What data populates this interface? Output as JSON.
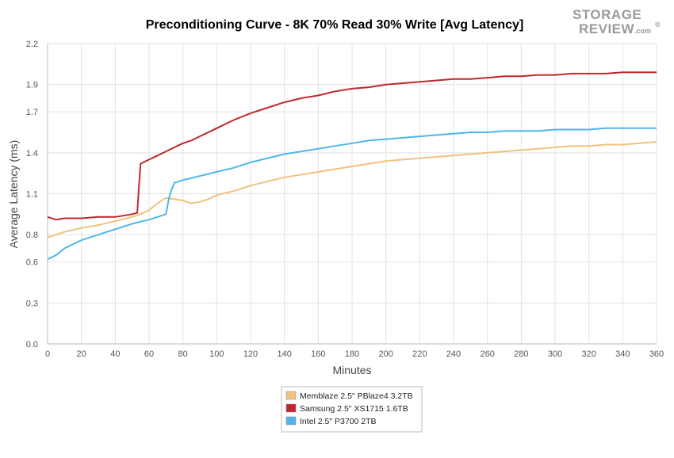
{
  "logo": {
    "line1": "STORAGE",
    "line2": "REVIEW",
    "suffix": ".com",
    "mark": "®"
  },
  "chart_data": {
    "type": "line",
    "title": "Preconditioning Curve - 8K 70% Read 30% Write [Avg Latency]",
    "xlabel": "Minutes",
    "ylabel": "Average Latency (ms)",
    "xlim": [
      0,
      360
    ],
    "ylim": [
      0,
      2.2
    ],
    "x_ticks": [
      0,
      20,
      40,
      60,
      80,
      100,
      120,
      140,
      160,
      180,
      200,
      220,
      240,
      260,
      280,
      300,
      320,
      340,
      360
    ],
    "y_ticks": [
      0.0,
      0.3,
      0.6,
      0.8,
      1.1,
      1.4,
      1.7,
      1.9,
      2.2
    ],
    "y_tick_labels": [
      "0.0",
      "0.3",
      "0.6",
      "0.8",
      "1.1",
      "1.4",
      "1.7",
      "1.9",
      "2.2"
    ],
    "grid": true,
    "legend_position": "bottom-center",
    "series": [
      {
        "name": "Memblaze 2.5\" PBlaze4 3.2TB",
        "color": "#f0c27f",
        "x": [
          0,
          5,
          10,
          20,
          30,
          40,
          50,
          55,
          60,
          65,
          70,
          75,
          80,
          85,
          90,
          95,
          100,
          110,
          120,
          130,
          140,
          150,
          160,
          170,
          180,
          190,
          200,
          210,
          220,
          230,
          240,
          250,
          260,
          270,
          280,
          290,
          300,
          310,
          320,
          330,
          340,
          350,
          360
        ],
        "y": [
          0.78,
          0.8,
          0.82,
          0.85,
          0.87,
          0.9,
          0.93,
          0.95,
          0.98,
          1.03,
          1.07,
          1.06,
          1.05,
          1.03,
          1.04,
          1.06,
          1.09,
          1.12,
          1.16,
          1.19,
          1.22,
          1.24,
          1.26,
          1.28,
          1.3,
          1.32,
          1.34,
          1.35,
          1.36,
          1.37,
          1.38,
          1.39,
          1.4,
          1.41,
          1.42,
          1.43,
          1.44,
          1.45,
          1.45,
          1.46,
          1.46,
          1.47,
          1.48
        ]
      },
      {
        "name": "Samsung 2.5\" XS1715 1.6TB",
        "color": "#c0272d",
        "x": [
          0,
          5,
          10,
          20,
          30,
          40,
          50,
          53,
          54,
          55,
          60,
          65,
          70,
          75,
          80,
          85,
          90,
          95,
          100,
          110,
          120,
          130,
          140,
          150,
          160,
          170,
          180,
          190,
          200,
          210,
          220,
          230,
          240,
          250,
          260,
          270,
          280,
          290,
          300,
          310,
          320,
          330,
          340,
          350,
          360
        ],
        "y": [
          0.93,
          0.91,
          0.92,
          0.92,
          0.93,
          0.93,
          0.95,
          0.96,
          1.15,
          1.32,
          1.35,
          1.38,
          1.41,
          1.44,
          1.47,
          1.49,
          1.52,
          1.55,
          1.58,
          1.64,
          1.69,
          1.73,
          1.77,
          1.8,
          1.82,
          1.85,
          1.87,
          1.88,
          1.9,
          1.91,
          1.92,
          1.93,
          1.94,
          1.94,
          1.95,
          1.96,
          1.96,
          1.97,
          1.97,
          1.98,
          1.98,
          1.98,
          1.99,
          1.99,
          1.99
        ]
      },
      {
        "name": "Intel 2.5\" P3700 2TB",
        "color": "#4cb7e8",
        "x": [
          0,
          5,
          10,
          20,
          30,
          40,
          50,
          60,
          65,
          70,
          71,
          72,
          73,
          75,
          80,
          90,
          100,
          110,
          120,
          130,
          140,
          150,
          160,
          170,
          180,
          190,
          200,
          210,
          220,
          230,
          240,
          250,
          260,
          270,
          280,
          290,
          300,
          310,
          320,
          330,
          340,
          350,
          360
        ],
        "y": [
          0.62,
          0.65,
          0.7,
          0.76,
          0.8,
          0.84,
          0.88,
          0.91,
          0.93,
          0.95,
          1.02,
          1.08,
          1.12,
          1.18,
          1.2,
          1.23,
          1.26,
          1.29,
          1.33,
          1.36,
          1.39,
          1.41,
          1.43,
          1.45,
          1.47,
          1.49,
          1.5,
          1.51,
          1.52,
          1.53,
          1.54,
          1.55,
          1.55,
          1.56,
          1.56,
          1.56,
          1.57,
          1.57,
          1.57,
          1.58,
          1.58,
          1.58,
          1.58
        ]
      }
    ]
  }
}
